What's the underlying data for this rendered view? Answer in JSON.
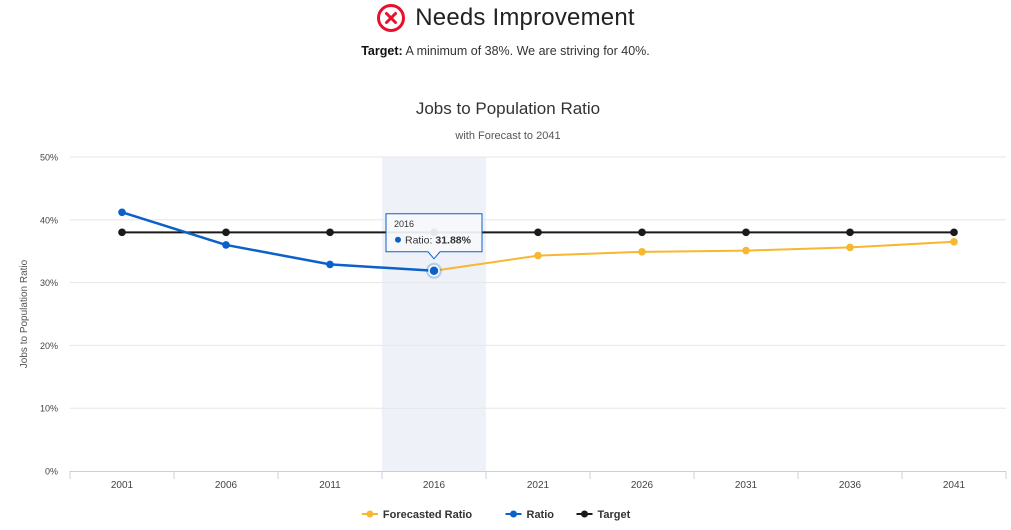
{
  "status": {
    "icon": "x-circle-icon",
    "color": "#e8112d",
    "text": "Needs Improvement"
  },
  "target_note": {
    "label": "Target:",
    "text": "A minimum of 38%. We are striving for 40%."
  },
  "chart_data": {
    "type": "line",
    "title": "Jobs to Population Ratio",
    "subtitle": "with Forecast to 2041",
    "ylabel": "Jobs to Population Ratio",
    "xlabel": "",
    "categories": [
      "2001",
      "2006",
      "2011",
      "2016",
      "2021",
      "2026",
      "2031",
      "2036",
      "2041"
    ],
    "ylim": [
      0,
      50
    ],
    "yticks": [
      "0%",
      "10%",
      "20%",
      "30%",
      "40%",
      "50%"
    ],
    "grid": true,
    "legend_position": "bottom-center",
    "series": [
      {
        "name": "Forecasted Ratio",
        "color": "#f7b731",
        "values": [
          null,
          null,
          null,
          31.88,
          34.3,
          34.9,
          35.1,
          35.6,
          36.5
        ]
      },
      {
        "name": "Ratio",
        "color": "#0b61c9",
        "values": [
          41.2,
          36.0,
          32.9,
          31.88,
          null,
          null,
          null,
          null,
          null
        ]
      },
      {
        "name": "Target",
        "color": "#1a1a1a",
        "values": [
          38,
          38,
          38,
          38,
          38,
          38,
          38,
          38,
          38
        ]
      }
    ],
    "tooltip": {
      "category": "2016",
      "series_label": "Ratio:",
      "value_text": "31.88%"
    },
    "highlight_category": "2016"
  }
}
